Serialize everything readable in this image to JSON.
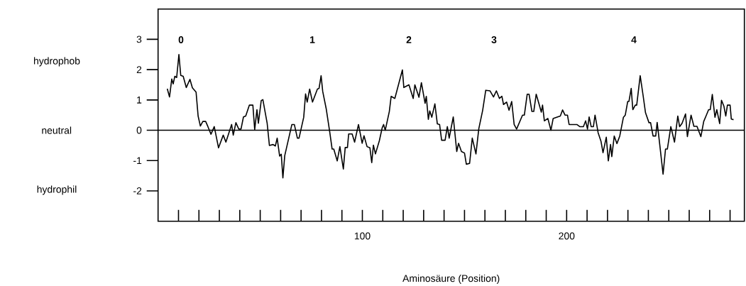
{
  "chart_data": {
    "type": "line",
    "xlabel": "Aminosäure (Position)",
    "xlim": [
      0,
      287
    ],
    "ylim": [
      -3,
      4
    ],
    "xticks": [
      {
        "value": 10,
        "label": null
      },
      {
        "value": 20,
        "label": null
      },
      {
        "value": 30,
        "label": null
      },
      {
        "value": 40,
        "label": null
      },
      {
        "value": 50,
        "label": null
      },
      {
        "value": 60,
        "label": null
      },
      {
        "value": 70,
        "label": null
      },
      {
        "value": 80,
        "label": null
      },
      {
        "value": 90,
        "label": null
      },
      100,
      {
        "value": 110,
        "label": null
      },
      {
        "value": 120,
        "label": null
      },
      {
        "value": 130,
        "label": null
      },
      {
        "value": 140,
        "label": null
      },
      {
        "value": 150,
        "label": null
      },
      {
        "value": 160,
        "label": null
      },
      {
        "value": 170,
        "label": null
      },
      {
        "value": 180,
        "label": null
      },
      {
        "value": 190,
        "label": null
      },
      200,
      {
        "value": 210,
        "label": null
      },
      {
        "value": 220,
        "label": null
      },
      {
        "value": 230,
        "label": null
      },
      {
        "value": 240,
        "label": null
      },
      {
        "value": 250,
        "label": null
      },
      {
        "value": 260,
        "label": null
      },
      {
        "value": 270,
        "label": null
      },
      {
        "value": 280,
        "label": null
      }
    ],
    "yticks": [
      -2,
      -1,
      0,
      1,
      2,
      3
    ],
    "grid": false,
    "marker": "none",
    "line_style": "solid",
    "ref_lines": [
      {
        "axis": "y",
        "value": 0,
        "label": "neutral",
        "color": "#000000"
      }
    ],
    "annotations": [
      "hydrophob",
      "hydrophil",
      "0",
      "1",
      "2",
      "3",
      "4"
    ],
    "series": [
      {
        "color": "#000000",
        "x": [
          4.5,
          5.6,
          6.7,
          7.4,
          8.2,
          9.1,
          10.2,
          11.1,
          12.3,
          13.8,
          15.6,
          16.8,
          18.6,
          19.6,
          20.7,
          21.9,
          23.3,
          24.4,
          25.9,
          27.5,
          29.6,
          31.9,
          33.2,
          34.5,
          36,
          36.8,
          38.1,
          39.5,
          40.6,
          41.8,
          42.9,
          44.7,
          46.4,
          47.3,
          48.4,
          49.1,
          50.5,
          51.3,
          53.4,
          54.5,
          56.3,
          57.4,
          58.3,
          59.5,
          60.3,
          61.1,
          62,
          65.5,
          66.7,
          68.2,
          69,
          71.3,
          72.2,
          73,
          74.2,
          75.6,
          78,
          78.8,
          79.8,
          80.6,
          82.3,
          84,
          85.2,
          86,
          87.7,
          89,
          90.7,
          91.6,
          92.7,
          93.3,
          95,
          96.2,
          98.1,
          99.9,
          100.8,
          102.3,
          103.7,
          104.6,
          105.4,
          106.4,
          108.3,
          109.7,
          110.4,
          111.2,
          113.2,
          114.1,
          115.9,
          119.6,
          120.3,
          122.8,
          124.9,
          125.7,
          127.7,
          128.9,
          130.7,
          131.3,
          132.3,
          133,
          134,
          135.5,
          136.7,
          137.8,
          138.8,
          140.5,
          141.6,
          142.5,
          144.5,
          146.2,
          147.1,
          148.5,
          150,
          150.9,
          152.5,
          153.8,
          155.6,
          157,
          158.9,
          160.4,
          162.5,
          164.2,
          165.6,
          167.1,
          168.3,
          169.1,
          170.6,
          171.8,
          173.1,
          174.3,
          175.5,
          178.4,
          179.3,
          180.7,
          181.6,
          183,
          183.9,
          185.1,
          186.8,
          187.6,
          188.2,
          189.1,
          190.8,
          192.3,
          193.4,
          195.1,
          196.9,
          198,
          199.2,
          200.4,
          201.2,
          205,
          206.4,
          208.2,
          209.3,
          210.2,
          211,
          212,
          213.1,
          213.9,
          215.4,
          216.8,
          217.8,
          219.4,
          220.4,
          221.5,
          222.1,
          223.3,
          224.6,
          226,
          227.8,
          228.7,
          229.9,
          230.5,
          231.6,
          232.4,
          233.6,
          234.3,
          236,
          237.4,
          238.6,
          240.3,
          241.1,
          242.3,
          243.6,
          244.3,
          245.5,
          247.2,
          248.4,
          249.3,
          251,
          252.8,
          254.4,
          255.3,
          256.5,
          258.2,
          259.1,
          260.9,
          262.3,
          263.8,
          265.7,
          267.1,
          268.4,
          269.5,
          270.3,
          271.3,
          272.6,
          273.5,
          274.9,
          275.8,
          277,
          277.9,
          278.7,
          280,
          280.6,
          281.7
        ],
        "values": [
          1.37,
          1.1,
          1.69,
          1.53,
          1.78,
          1.74,
          2.5,
          1.81,
          1.78,
          1.41,
          1.68,
          1.4,
          1.26,
          0.47,
          0.14,
          0.29,
          0.29,
          0.12,
          -0.13,
          0.12,
          -0.58,
          -0.16,
          -0.39,
          -0.12,
          0.19,
          -0.16,
          0.25,
          0.04,
          0.04,
          0.44,
          0.47,
          0.83,
          0.83,
          0.02,
          0.68,
          0.23,
          0.98,
          1.01,
          0.23,
          -0.5,
          -0.47,
          -0.52,
          -0.26,
          -0.85,
          -0.79,
          -1.57,
          -0.84,
          0.19,
          0.19,
          -0.26,
          -0.26,
          0.43,
          1.2,
          0.93,
          1.36,
          0.93,
          1.36,
          1.38,
          1.8,
          1.28,
          0.71,
          -0.04,
          -0.62,
          -0.62,
          -1.01,
          -0.54,
          -1.28,
          -0.57,
          -0.57,
          -0.12,
          -0.12,
          -0.39,
          0.19,
          -0.43,
          -0.18,
          -0.54,
          -0.58,
          -1.07,
          -0.49,
          -0.78,
          -0.35,
          0.08,
          0.19,
          0,
          0.62,
          1.12,
          1.05,
          1.99,
          1.41,
          1.5,
          1.05,
          1.5,
          1.09,
          1.57,
          0.89,
          1.12,
          0.36,
          0.64,
          0.43,
          0.87,
          0.21,
          0.19,
          -0.33,
          -0.33,
          0.12,
          -0.26,
          0.44,
          -0.7,
          -0.43,
          -0.7,
          -0.75,
          -1.12,
          -1.09,
          -0.26,
          -0.78,
          0.05,
          0.66,
          1.32,
          1.3,
          1.1,
          1.3,
          1.05,
          1.12,
          0.85,
          0.93,
          0.66,
          0.95,
          0.19,
          0.04,
          0.5,
          0.5,
          1.19,
          1.19,
          0.62,
          0.62,
          1.19,
          0.79,
          0.6,
          0.83,
          0.31,
          0.39,
          0,
          0.39,
          0.43,
          0.47,
          0.67,
          0.5,
          0.5,
          0.19,
          0.19,
          0.12,
          0.12,
          0.31,
          0.04,
          0.44,
          0.12,
          0.12,
          0.5,
          -0.08,
          -0.36,
          -0.74,
          -0.23,
          -1.01,
          -0.47,
          -0.87,
          -0.19,
          -0.44,
          -0.19,
          0.43,
          0.5,
          0.95,
          0.95,
          1.38,
          0.68,
          0.83,
          0.83,
          1.8,
          1.16,
          0.58,
          0.25,
          0.25,
          -0.19,
          -0.19,
          0.26,
          -0.43,
          -1.45,
          -0.62,
          -0.62,
          0.12,
          -0.39,
          0.47,
          0.12,
          0.23,
          0.54,
          -0.21,
          0.5,
          0.13,
          0.13,
          -0.21,
          0.29,
          0.5,
          0.68,
          0.68,
          1.18,
          0.43,
          0.68,
          0.22,
          0.99,
          0.79,
          0.47,
          0.83,
          0.83,
          0.37,
          0.35
        ]
      }
    ]
  }
}
